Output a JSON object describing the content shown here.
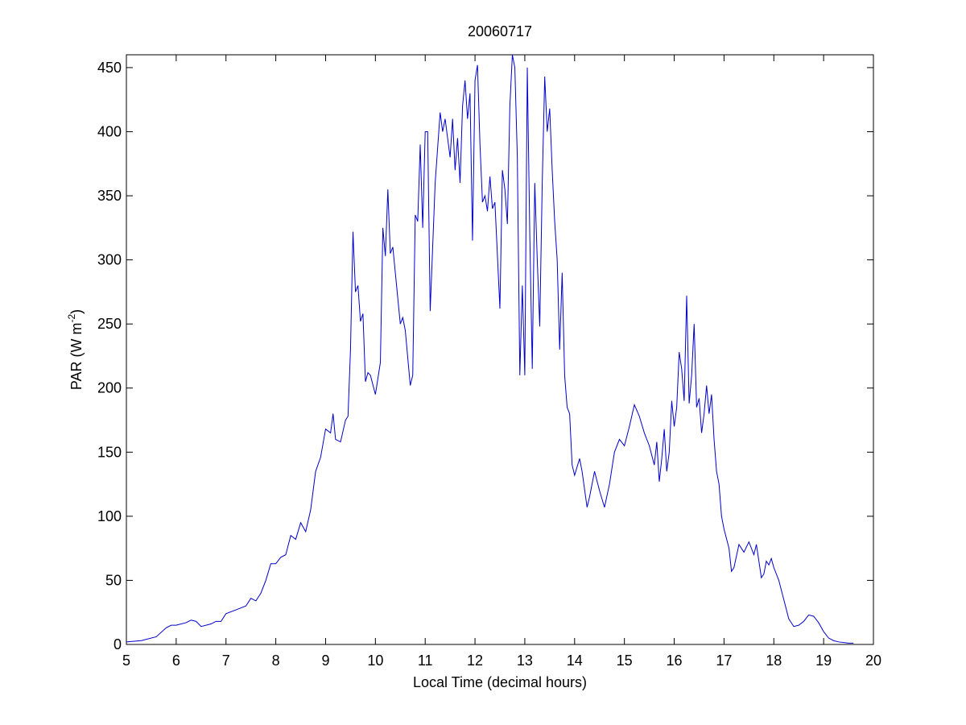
{
  "chart_data": {
    "type": "line",
    "title": "20060717",
    "xlabel": "Local Time (decimal hours)",
    "ylabel": [
      "PAR (W m",
      "-2",
      ")"
    ],
    "xlim": [
      5,
      20
    ],
    "ylim": [
      0,
      460
    ],
    "xticks": [
      5,
      6,
      7,
      8,
      9,
      10,
      11,
      12,
      13,
      14,
      15,
      16,
      17,
      18,
      19,
      20
    ],
    "yticks": [
      0,
      50,
      100,
      150,
      200,
      250,
      300,
      350,
      400,
      450
    ],
    "grid": false,
    "series": [
      {
        "name": "PAR",
        "color": "#0000cc",
        "x": [
          5.0,
          5.3,
          5.6,
          5.8,
          5.9,
          6.0,
          6.2,
          6.3,
          6.4,
          6.5,
          6.7,
          6.8,
          6.9,
          7.0,
          7.2,
          7.4,
          7.5,
          7.6,
          7.7,
          7.8,
          7.9,
          8.0,
          8.1,
          8.2,
          8.3,
          8.4,
          8.5,
          8.6,
          8.7,
          8.8,
          8.9,
          9.0,
          9.1,
          9.15,
          9.2,
          9.3,
          9.4,
          9.45,
          9.5,
          9.55,
          9.6,
          9.65,
          9.7,
          9.75,
          9.8,
          9.85,
          9.9,
          10.0,
          10.1,
          10.15,
          10.2,
          10.25,
          10.3,
          10.35,
          10.4,
          10.5,
          10.55,
          10.6,
          10.7,
          10.75,
          10.8,
          10.85,
          10.9,
          10.95,
          11.0,
          11.05,
          11.1,
          11.2,
          11.3,
          11.35,
          11.4,
          11.5,
          11.55,
          11.6,
          11.65,
          11.7,
          11.75,
          11.8,
          11.85,
          11.9,
          11.95,
          12.0,
          12.05,
          12.1,
          12.15,
          12.2,
          12.25,
          12.3,
          12.35,
          12.4,
          12.5,
          12.55,
          12.6,
          12.65,
          12.7,
          12.75,
          12.8,
          12.85,
          12.9,
          12.95,
          13.0,
          13.05,
          13.1,
          13.15,
          13.2,
          13.25,
          13.3,
          13.35,
          13.4,
          13.45,
          13.5,
          13.55,
          13.6,
          13.65,
          13.7,
          13.75,
          13.8,
          13.85,
          13.9,
          13.95,
          14.0,
          14.1,
          14.15,
          14.25,
          14.3,
          14.4,
          14.5,
          14.6,
          14.7,
          14.8,
          14.9,
          15.0,
          15.1,
          15.2,
          15.3,
          15.4,
          15.5,
          15.6,
          15.65,
          15.7,
          15.75,
          15.8,
          15.85,
          15.9,
          15.95,
          16.0,
          16.05,
          16.1,
          16.15,
          16.2,
          16.25,
          16.3,
          16.35,
          16.4,
          16.45,
          16.5,
          16.55,
          16.6,
          16.65,
          16.7,
          16.75,
          16.8,
          16.85,
          16.9,
          16.95,
          17.0,
          17.1,
          17.15,
          17.2,
          17.3,
          17.4,
          17.5,
          17.6,
          17.65,
          17.7,
          17.75,
          17.8,
          17.85,
          17.9,
          17.95,
          18.0,
          18.1,
          18.2,
          18.3,
          18.4,
          18.5,
          18.6,
          18.7,
          18.8,
          18.9,
          19.0,
          19.1,
          19.2,
          19.3,
          19.5,
          19.6
        ],
        "values": [
          2,
          3,
          6,
          13,
          15,
          15,
          17,
          19,
          18,
          14,
          16,
          18,
          18,
          24,
          27,
          30,
          36,
          34,
          40,
          50,
          63,
          63,
          68,
          70,
          85,
          82,
          95,
          88,
          105,
          135,
          146,
          168,
          165,
          180,
          160,
          158,
          175,
          178,
          230,
          322,
          275,
          280,
          252,
          258,
          205,
          212,
          210,
          195,
          220,
          325,
          303,
          355,
          305,
          310,
          290,
          250,
          255,
          245,
          202,
          210,
          335,
          330,
          390,
          325,
          400,
          400,
          260,
          360,
          415,
          400,
          410,
          380,
          410,
          370,
          395,
          360,
          420,
          440,
          410,
          430,
          315,
          440,
          452,
          390,
          345,
          350,
          338,
          365,
          340,
          345,
          262,
          370,
          355,
          328,
          420,
          460,
          450,
          380,
          210,
          280,
          210,
          450,
          320,
          215,
          360,
          300,
          248,
          360,
          443,
          400,
          418,
          370,
          330,
          300,
          230,
          290,
          210,
          185,
          180,
          140,
          132,
          145,
          135,
          107,
          115,
          135,
          120,
          107,
          125,
          150,
          160,
          155,
          170,
          187,
          178,
          165,
          155,
          140,
          158,
          127,
          145,
          168,
          135,
          150,
          190,
          170,
          185,
          228,
          215,
          190,
          272,
          188,
          210,
          250,
          185,
          192,
          165,
          180,
          202,
          180,
          195,
          160,
          135,
          125,
          100,
          90,
          75,
          57,
          60,
          78,
          72,
          80,
          70,
          78,
          65,
          52,
          55,
          65,
          62,
          67,
          60,
          50,
          35,
          20,
          14,
          15,
          18,
          23,
          22,
          17,
          10,
          5,
          3,
          2,
          1,
          1
        ]
      }
    ]
  }
}
